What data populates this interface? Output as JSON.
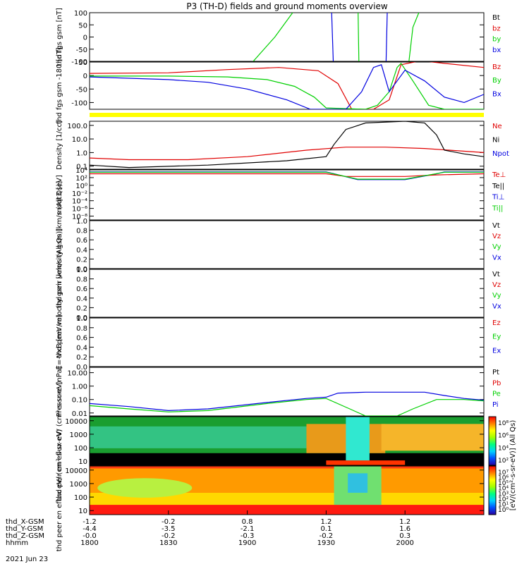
{
  "title": "P3 (TH-D) fields and ground moments overview",
  "date_label": "2021 Jun 23",
  "colors": {
    "black": "#000000",
    "red": "#e00000",
    "green": "#00d000",
    "blue": "#0000e0",
    "yellow": "#ffff00"
  },
  "chart_data": [
    {
      "id": "fgs",
      "type": "line",
      "ylabel": "thd fgs gsm [nT]",
      "ylim": [
        -100,
        100
      ],
      "yticks": [
        "100",
        "50",
        "0",
        "-50",
        "-100"
      ],
      "legend": [
        {
          "name": "Bt",
          "color": "#000000"
        },
        {
          "name": "bz",
          "color": "#e00000"
        },
        {
          "name": "by",
          "color": "#00d000"
        },
        {
          "name": "bx",
          "color": "#0000e0"
        }
      ],
      "series": [
        {
          "name": "by",
          "color": "#00d000",
          "points": [
            [
              0.415,
              -100
            ],
            [
              0.47,
              0
            ],
            [
              0.515,
              100
            ]
          ]
        },
        {
          "name": "bx",
          "color": "#0000e0",
          "points": [
            [
              0.614,
              100
            ],
            [
              0.618,
              -100
            ]
          ]
        },
        {
          "name": "by",
          "color": "#00d000",
          "points": [
            [
              0.681,
              100
            ],
            [
              0.683,
              -100
            ]
          ]
        },
        {
          "name": "bx",
          "color": "#0000e0",
          "points": [
            [
              0.752,
              -100
            ],
            [
              0.755,
              100
            ]
          ]
        },
        {
          "name": "by",
          "color": "#00d000",
          "points": [
            [
              0.81,
              -100
            ],
            [
              0.82,
              40
            ],
            [
              0.835,
              100
            ]
          ]
        }
      ]
    },
    {
      "id": "fgs_dsl",
      "type": "line",
      "ylabel": "thd fgs gsm -180 [nT]",
      "ylim": [
        -125,
        50
      ],
      "yticks": [
        "50",
        "0",
        "-50",
        "-100"
      ],
      "legend": [
        {
          "name": "Bz",
          "color": "#e00000"
        },
        {
          "name": "By",
          "color": "#00d000"
        },
        {
          "name": "Bx",
          "color": "#0000e0"
        }
      ],
      "series": [
        {
          "name": "Bz",
          "color": "#e00000",
          "points": [
            [
              0,
              8
            ],
            [
              0.2,
              10
            ],
            [
              0.35,
              22
            ],
            [
              0.48,
              30
            ],
            [
              0.58,
              18
            ],
            [
              0.63,
              -30
            ],
            [
              0.665,
              -125
            ],
            [
              0.72,
              -125
            ],
            [
              0.76,
              -90
            ],
            [
              0.79,
              40
            ],
            [
              0.84,
              55
            ],
            [
              0.9,
              45
            ],
            [
              1,
              30
            ]
          ]
        },
        {
          "name": "By",
          "color": "#00d000",
          "points": [
            [
              0,
              -2
            ],
            [
              0.2,
              -2
            ],
            [
              0.35,
              -5
            ],
            [
              0.45,
              -15
            ],
            [
              0.52,
              -40
            ],
            [
              0.57,
              -80
            ],
            [
              0.6,
              -120
            ],
            [
              0.7,
              -125
            ],
            [
              0.73,
              -110
            ],
            [
              0.76,
              -60
            ],
            [
              0.78,
              30
            ],
            [
              0.79,
              45
            ],
            [
              0.82,
              -20
            ],
            [
              0.86,
              -110
            ],
            [
              0.9,
              -125
            ],
            [
              1,
              -125
            ]
          ]
        },
        {
          "name": "Bx",
          "color": "#0000e0",
          "points": [
            [
              0,
              -5
            ],
            [
              0.2,
              -15
            ],
            [
              0.3,
              -25
            ],
            [
              0.4,
              -50
            ],
            [
              0.5,
              -90
            ],
            [
              0.56,
              -125
            ],
            [
              0.65,
              -125
            ],
            [
              0.69,
              -60
            ],
            [
              0.72,
              30
            ],
            [
              0.74,
              40
            ],
            [
              0.76,
              -60
            ],
            [
              0.8,
              20
            ],
            [
              0.85,
              -20
            ],
            [
              0.9,
              -80
            ],
            [
              0.95,
              -100
            ],
            [
              1,
              -70
            ]
          ]
        }
      ],
      "bar_color": "#ffff00"
    },
    {
      "id": "density",
      "type": "line",
      "ylabel": "Density [1/cc]",
      "yscale": "log",
      "ylim": [
        0.06,
        200
      ],
      "yticks": [
        {
          "value": 100,
          "label": "100.0"
        },
        {
          "value": 10,
          "label": "10.0"
        },
        {
          "value": 1,
          "label": "1.0"
        },
        {
          "value": 0.1,
          "label": "0.1"
        }
      ],
      "legend": [
        {
          "name": "Ne",
          "color": "#e00000"
        },
        {
          "name": "Ni",
          "color": "#000000"
        },
        {
          "name": "Npot",
          "color": "#0000e0"
        }
      ],
      "series": [
        {
          "name": "Ne",
          "color": "#e00000",
          "points": [
            [
              0,
              0.4
            ],
            [
              0.1,
              0.3
            ],
            [
              0.25,
              0.3
            ],
            [
              0.4,
              0.5
            ],
            [
              0.55,
              1.5
            ],
            [
              0.65,
              2.5
            ],
            [
              0.75,
              2.5
            ],
            [
              0.85,
              2
            ],
            [
              1,
              1
            ]
          ]
        },
        {
          "name": "Ni",
          "color": "#000000",
          "points": [
            [
              0,
              0.12
            ],
            [
              0.1,
              0.08
            ],
            [
              0.3,
              0.12
            ],
            [
              0.5,
              0.25
            ],
            [
              0.6,
              0.5
            ],
            [
              0.62,
              4
            ],
            [
              0.65,
              50
            ],
            [
              0.7,
              150
            ],
            [
              0.8,
              200
            ],
            [
              0.85,
              150
            ],
            [
              0.88,
              20
            ],
            [
              0.9,
              1.5
            ],
            [
              0.95,
              0.8
            ],
            [
              1,
              0.5
            ]
          ]
        }
      ]
    },
    {
      "id": "temps",
      "type": "line",
      "ylabel": "moqt3 [eV]",
      "yscale": "log",
      "ylim": [
        1e-09,
        10000.0
      ],
      "yticks": [
        {
          "value": 10000.0,
          "label": "10⁴"
        },
        {
          "value": 100.0,
          "label": "10²"
        },
        {
          "value": 1.0,
          "label": "10⁰"
        },
        {
          "value": 0.01,
          "label": "10⁻²"
        },
        {
          "value": 0.0001,
          "label": "10⁻⁴"
        },
        {
          "value": 1e-06,
          "label": "10⁻⁶"
        },
        {
          "value": 1e-08,
          "label": "10⁻⁸"
        }
      ],
      "legend": [
        {
          "name": "Te⊥",
          "color": "#e00000"
        },
        {
          "name": "Te||",
          "color": "#000000"
        },
        {
          "name": "Ti⊥",
          "color": "#0000e0"
        },
        {
          "name": "Ti||",
          "color": "#00d000"
        }
      ],
      "series": [
        {
          "name": "Ti⊥",
          "color": "#0000e0",
          "points": [
            [
              0,
              3000
            ],
            [
              0.6,
              3000
            ],
            [
              0.62,
              1000
            ],
            [
              0.68,
              30
            ],
            [
              0.8,
              30
            ],
            [
              0.88,
              1000
            ],
            [
              0.9,
              3000
            ],
            [
              1,
              3000
            ]
          ]
        },
        {
          "name": "Te⊥",
          "color": "#e00000",
          "points": [
            [
              0,
              1000
            ],
            [
              0.6,
              1000
            ],
            [
              0.65,
              200
            ],
            [
              0.8,
              200
            ],
            [
              0.88,
              500
            ],
            [
              1,
              1000
            ]
          ]
        },
        {
          "name": "Ti||",
          "color": "#00d000",
          "points": [
            [
              0,
              2500
            ],
            [
              0.6,
              2500
            ],
            [
              0.68,
              40
            ],
            [
              0.8,
              40
            ],
            [
              0.9,
              2500
            ],
            [
              1,
              2500
            ]
          ]
        }
      ]
    },
    {
      "id": "peir_vel",
      "type": "line",
      "ylabel": "thd peir velocity gsm [km/s (All Qs)]",
      "ylim": [
        0,
        1
      ],
      "yticks": [
        "1.0",
        "0.8",
        "0.6",
        "0.4",
        "0.2",
        "0.0"
      ],
      "legend": [
        {
          "name": "Vt",
          "color": "#000000"
        },
        {
          "name": "Vz",
          "color": "#e00000"
        },
        {
          "name": "Vy",
          "color": "#00d000"
        },
        {
          "name": "Vx",
          "color": "#0000e0"
        }
      ],
      "series": []
    },
    {
      "id": "peer_vel",
      "type": "line",
      "ylabel": "thd peer velocity gsm [km/s (All Qs)]",
      "ylim": [
        0,
        1
      ],
      "yticks": [
        "1.0",
        "0.8",
        "0.6",
        "0.4",
        "0.2",
        "0.0"
      ],
      "legend": [
        {
          "name": "Vt",
          "color": "#000000"
        },
        {
          "name": "Vz",
          "color": "#e00000"
        },
        {
          "name": "Vy",
          "color": "#00d000"
        },
        {
          "name": "Vx",
          "color": "#0000e0"
        }
      ],
      "series": []
    },
    {
      "id": "efield",
      "type": "line",
      "ylabel": "E=-VxB [mV/m]",
      "ylim": [
        0,
        1
      ],
      "yticks": [
        "1.0",
        "0.8",
        "0.6",
        "0.4",
        "0.2",
        "0.0"
      ],
      "legend": [
        {
          "name": "Ez",
          "color": "#e00000"
        },
        {
          "name": "Ey",
          "color": "#00d000"
        },
        {
          "name": "Ex",
          "color": "#0000e0"
        }
      ],
      "series": []
    },
    {
      "id": "pressure",
      "type": "line",
      "ylabel": "Pressure [nPa]",
      "yscale": "log",
      "ylim": [
        0.006,
        25
      ],
      "yticks": [
        {
          "value": 10,
          "label": "10.00"
        },
        {
          "value": 1,
          "label": "1.00"
        },
        {
          "value": 0.1,
          "label": "0.10"
        },
        {
          "value": 0.01,
          "label": "0.01"
        }
      ],
      "legend": [
        {
          "name": "Pt",
          "color": "#000000"
        },
        {
          "name": "Pb",
          "color": "#e00000"
        },
        {
          "name": "Pe",
          "color": "#00d000"
        },
        {
          "name": "Pi",
          "color": "#0000e0"
        }
      ],
      "series": [
        {
          "name": "Pi",
          "color": "#0000e0",
          "points": [
            [
              0,
              0.05
            ],
            [
              0.1,
              0.03
            ],
            [
              0.2,
              0.015
            ],
            [
              0.3,
              0.02
            ],
            [
              0.45,
              0.06
            ],
            [
              0.55,
              0.12
            ],
            [
              0.6,
              0.15
            ],
            [
              0.63,
              0.3
            ],
            [
              0.7,
              0.35
            ],
            [
              0.85,
              0.35
            ],
            [
              0.9,
              0.2
            ],
            [
              0.95,
              0.12
            ],
            [
              1,
              0.09
            ]
          ]
        },
        {
          "name": "Pe",
          "color": "#00d000",
          "points": [
            [
              0,
              0.035
            ],
            [
              0.1,
              0.02
            ],
            [
              0.2,
              0.012
            ],
            [
              0.3,
              0.015
            ],
            [
              0.45,
              0.05
            ],
            [
              0.55,
              0.1
            ],
            [
              0.6,
              0.12
            ],
            [
              0.66,
              0.02
            ],
            [
              0.7,
              0.006
            ],
            [
              0.78,
              0.006
            ],
            [
              0.82,
              0.02
            ],
            [
              0.88,
              0.1
            ],
            [
              0.95,
              0.1
            ],
            [
              1,
              0.08
            ]
          ]
        }
      ]
    },
    {
      "id": "peir_spec",
      "type": "heatmap",
      "ylabel": "thd peir en eflux eV/ (cm²-s-sr-eV)",
      "yscale": "log",
      "ylim": [
        5,
        20000
      ],
      "yticks": [
        {
          "value": 10000,
          "label": "10000"
        },
        {
          "value": 1000,
          "label": "1000"
        },
        {
          "value": 100,
          "label": "100"
        },
        {
          "value": 10,
          "label": "10"
        }
      ],
      "colorbar_ticks": [
        "10⁸",
        "10⁶",
        "10⁴",
        "10²"
      ]
    },
    {
      "id": "peer_spec",
      "type": "heatmap",
      "ylabel": "thd peer en eflux eV/ (cm²-s-sr-eV)",
      "yscale": "log",
      "ylim": [
        5,
        20000
      ],
      "yticks": [
        {
          "value": 10000,
          "label": "10000"
        },
        {
          "value": 1000,
          "label": "1000"
        },
        {
          "value": 100,
          "label": "100"
        },
        {
          "value": 10,
          "label": "10"
        }
      ],
      "colorbar_ticks": [
        "10⁷",
        "10⁶",
        "10⁵",
        "10⁴",
        "10³",
        "10²",
        "10¹",
        "10⁰"
      ]
    }
  ],
  "colorbar_label": "[eV/(cm²-s-sr-eV)] (All Qs)",
  "xaxis": {
    "row_labels": [
      "thd_X-GSM",
      "thd_Y-GSM",
      "thd_Z-GSM",
      "hhmm"
    ],
    "columns": [
      {
        "x": 0.0,
        "values": [
          "-1.2",
          "-4.4",
          "-0.0",
          "1800"
        ]
      },
      {
        "x": 0.2,
        "values": [
          "-0.2",
          "-3.5",
          "-0.2",
          "1830"
        ]
      },
      {
        "x": 0.4,
        "values": [
          "0.8",
          "-2.1",
          "-0.3",
          "1900"
        ]
      },
      {
        "x": 0.6,
        "values": [
          "1.2",
          "0.1",
          "-0.2",
          "1930"
        ]
      },
      {
        "x": 0.8,
        "values": [
          "1.2",
          "1.6",
          "0.3",
          "2000"
        ]
      }
    ]
  }
}
